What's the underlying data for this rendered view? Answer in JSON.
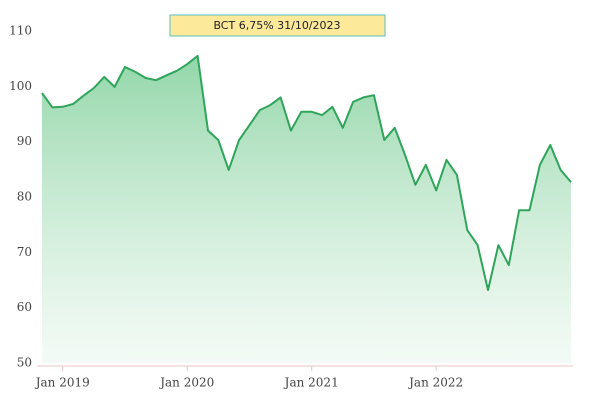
{
  "chart_data": {
    "type": "area",
    "title": "BCT 6,75% 31/10/2023",
    "categories": [
      null,
      null,
      "Jan 2019",
      null,
      null,
      null,
      null,
      null,
      null,
      null,
      null,
      null,
      null,
      null,
      "Jan 2020",
      null,
      null,
      null,
      null,
      null,
      null,
      null,
      null,
      null,
      null,
      null,
      "Jan 2021",
      null,
      null,
      null,
      null,
      null,
      null,
      null,
      null,
      null,
      null,
      null,
      "Jan 2022",
      null,
      null,
      null,
      null,
      null,
      null,
      null,
      null,
      null,
      null,
      null,
      null,
      null
    ],
    "values": [
      98.8,
      96.2,
      96.3,
      96.8,
      98.3,
      99.7,
      101.7,
      99.9,
      103.5,
      102.6,
      101.5,
      101.1,
      102,
      102.8,
      104,
      105.5,
      92,
      90.3,
      84.9,
      90.3,
      93,
      95.7,
      96.6,
      98,
      92,
      95.4,
      95.4,
      94.8,
      96.3,
      92.5,
      97.2,
      98,
      98.4,
      90.3,
      92.5,
      87.6,
      82.2,
      85.8,
      81.2,
      86.7,
      84,
      74,
      71.3,
      63.2,
      71.3,
      67.7,
      77.6,
      77.6,
      85.8,
      89.4,
      84.9,
      82.7
    ],
    "color": "#2ea55a",
    "ylim": [
      50,
      110
    ],
    "yticks": [
      50,
      60,
      70,
      80,
      90,
      100,
      110
    ],
    "grid": false
  }
}
